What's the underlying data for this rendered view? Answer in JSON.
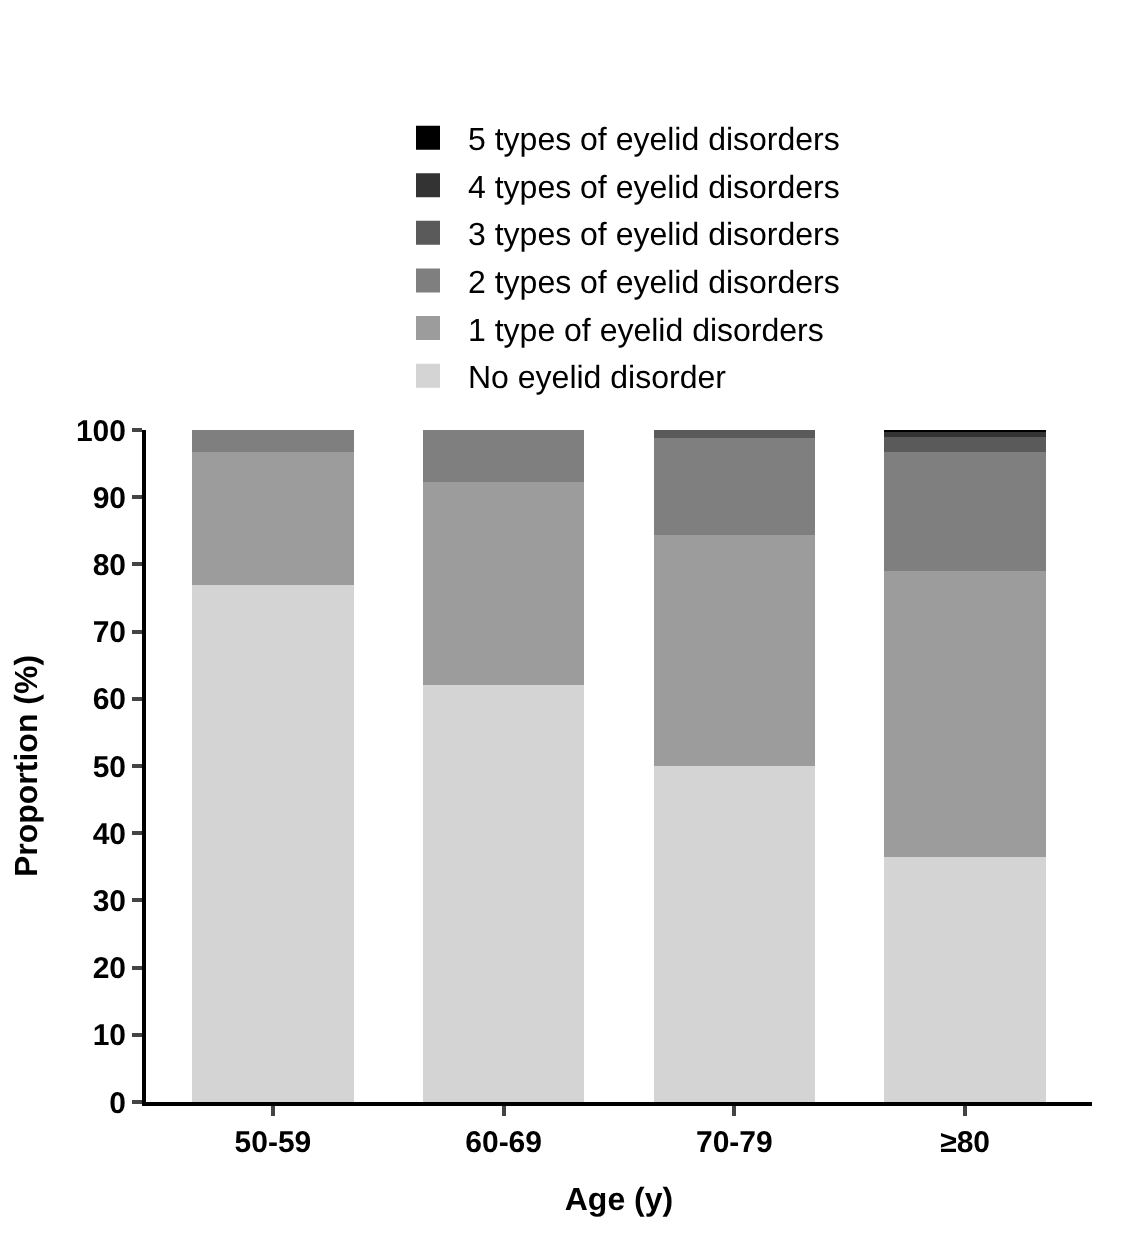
{
  "chart_data": {
    "type": "bar",
    "stacked": true,
    "xlabel": "Age (y)",
    "ylabel": "Proportion (%)",
    "categories": [
      "50-59",
      "60-69",
      "70-79",
      "≥80"
    ],
    "series": [
      {
        "name": "No eyelid disorder",
        "color": "#d4d4d4",
        "values": [
          77,
          62,
          50,
          36.5
        ]
      },
      {
        "name": "1 type of eyelid disorders",
        "color": "#9c9c9c",
        "values": [
          19.8,
          30.2,
          34.4,
          42.5
        ]
      },
      {
        "name": "2 types of eyelid disorders",
        "color": "#7f7f7f",
        "values": [
          3.2,
          7.8,
          14.4,
          17.8
        ]
      },
      {
        "name": "3 types of eyelid disorders",
        "color": "#5a5a5a",
        "values": [
          0,
          0,
          1.2,
          2.2
        ]
      },
      {
        "name": "4 types of eyelid disorders",
        "color": "#333333",
        "values": [
          0,
          0,
          0,
          0.8
        ]
      },
      {
        "name": "5 types of eyelid disorders",
        "color": "#000000",
        "values": [
          0,
          0,
          0,
          0.2
        ]
      }
    ],
    "ylim": [
      0,
      100
    ],
    "yticks": [
      0,
      10,
      20,
      30,
      40,
      50,
      60,
      70,
      80,
      90,
      100
    ],
    "legend": "top"
  }
}
